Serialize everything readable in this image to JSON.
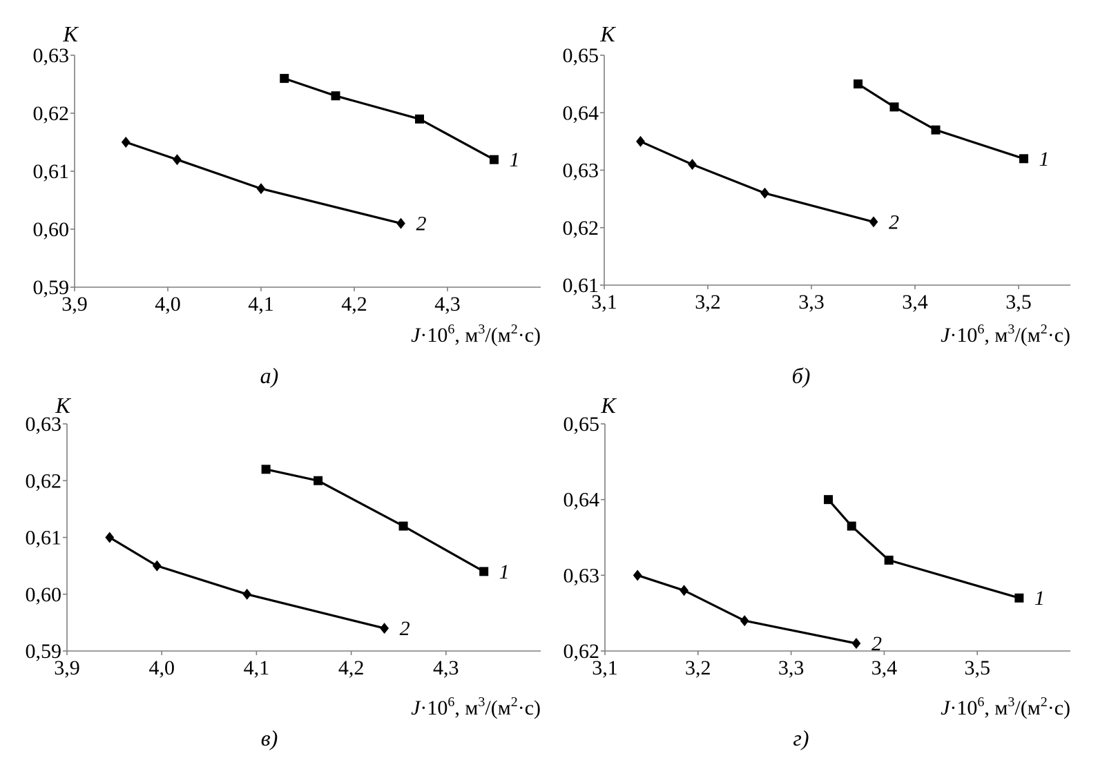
{
  "chart_data": [
    {
      "type": "line",
      "caption": "а)",
      "ylabel": "K",
      "xlabel": {
        "var": "J",
        "mult": "·10",
        "exp": "6",
        "unit_a": ", м",
        "exp2": "3",
        "unit_b": "/(м",
        "exp3": "2",
        "unit_c": "·с)"
      },
      "xlim": [
        3.9,
        4.4
      ],
      "ylim": [
        0.59,
        0.63
      ],
      "x_ticks": [
        3.9,
        4.0,
        4.1,
        4.2,
        4.3
      ],
      "x_tick_labels": [
        "3,9",
        "4,0",
        "4,1",
        "4,2",
        "4,3"
      ],
      "y_ticks": [
        0.59,
        0.6,
        0.61,
        0.62,
        0.63
      ],
      "y_tick_labels": [
        "0,59",
        "0,60",
        "0,61",
        "0,62",
        "0,63"
      ],
      "series": [
        {
          "name": "1",
          "marker": "square",
          "x": [
            4.125,
            4.18,
            4.27,
            4.35
          ],
          "y": [
            0.626,
            0.623,
            0.619,
            0.612
          ]
        },
        {
          "name": "2",
          "marker": "diamond",
          "x": [
            3.955,
            4.01,
            4.1,
            4.25
          ],
          "y": [
            0.615,
            0.612,
            0.607,
            0.601
          ]
        }
      ]
    },
    {
      "type": "line",
      "caption": "б)",
      "ylabel": "K",
      "xlabel": {
        "var": "J",
        "mult": "·10",
        "exp": "6",
        "unit_a": ", м",
        "exp2": "3",
        "unit_b": "/(м",
        "exp3": "2",
        "unit_c": "·с)"
      },
      "xlim": [
        3.1,
        3.55
      ],
      "ylim": [
        0.61,
        0.65
      ],
      "x_ticks": [
        3.1,
        3.2,
        3.3,
        3.4,
        3.5
      ],
      "x_tick_labels": [
        "3,1",
        "3,2",
        "3,3",
        "3,4",
        "3,5"
      ],
      "y_ticks": [
        0.61,
        0.62,
        0.63,
        0.64,
        0.65
      ],
      "y_tick_labels": [
        "0,61",
        "0,62",
        "0,63",
        "0,64",
        "0,65"
      ],
      "series": [
        {
          "name": "1",
          "marker": "square",
          "x": [
            3.345,
            3.38,
            3.42,
            3.505
          ],
          "y": [
            0.645,
            0.641,
            0.637,
            0.632
          ]
        },
        {
          "name": "2",
          "marker": "diamond",
          "x": [
            3.135,
            3.185,
            3.255,
            3.36
          ],
          "y": [
            0.635,
            0.631,
            0.626,
            0.621
          ]
        }
      ]
    },
    {
      "type": "line",
      "caption": "в)",
      "ylabel": "K",
      "xlabel": {
        "var": "J",
        "mult": "·10",
        "exp": "6",
        "unit_a": ", м",
        "exp2": "3",
        "unit_b": "/(м",
        "exp3": "2",
        "unit_c": "·с)"
      },
      "xlim": [
        3.9,
        4.4
      ],
      "ylim": [
        0.59,
        0.63
      ],
      "x_ticks": [
        3.9,
        4.0,
        4.1,
        4.2,
        4.3
      ],
      "x_tick_labels": [
        "3,9",
        "4,0",
        "4,1",
        "4,2",
        "4,3"
      ],
      "y_ticks": [
        0.59,
        0.6,
        0.61,
        0.62,
        0.63
      ],
      "y_tick_labels": [
        "0,59",
        "0,60",
        "0,61",
        "0,62",
        "0,63"
      ],
      "series": [
        {
          "name": "1",
          "marker": "square",
          "x": [
            4.11,
            4.165,
            4.255,
            4.34
          ],
          "y": [
            0.622,
            0.62,
            0.612,
            0.604
          ]
        },
        {
          "name": "2",
          "marker": "diamond",
          "x": [
            3.945,
            3.995,
            4.09,
            4.235
          ],
          "y": [
            0.61,
            0.605,
            0.6,
            0.594
          ]
        }
      ]
    },
    {
      "type": "line",
      "caption": "г)",
      "ylabel": "K",
      "xlabel": {
        "var": "J",
        "mult": "·10",
        "exp": "6",
        "unit_a": ", м",
        "exp2": "3",
        "unit_b": "/(м",
        "exp3": "2",
        "unit_c": "·с)"
      },
      "xlim": [
        3.1,
        3.6
      ],
      "ylim": [
        0.62,
        0.65
      ],
      "x_ticks": [
        3.1,
        3.2,
        3.3,
        3.4,
        3.5
      ],
      "x_tick_labels": [
        "3,1",
        "3,2",
        "3,3",
        "3,4",
        "3,5"
      ],
      "y_ticks": [
        0.62,
        0.63,
        0.64,
        0.65
      ],
      "y_tick_labels": [
        "0,62",
        "0,63",
        "0,64",
        "0,65"
      ],
      "series": [
        {
          "name": "1",
          "marker": "square",
          "x": [
            3.34,
            3.365,
            3.405,
            3.545
          ],
          "y": [
            0.64,
            0.6365,
            0.632,
            0.627
          ]
        },
        {
          "name": "2",
          "marker": "diamond",
          "x": [
            3.135,
            3.185,
            3.25,
            3.37
          ],
          "y": [
            0.63,
            0.628,
            0.624,
            0.621
          ]
        }
      ]
    }
  ]
}
